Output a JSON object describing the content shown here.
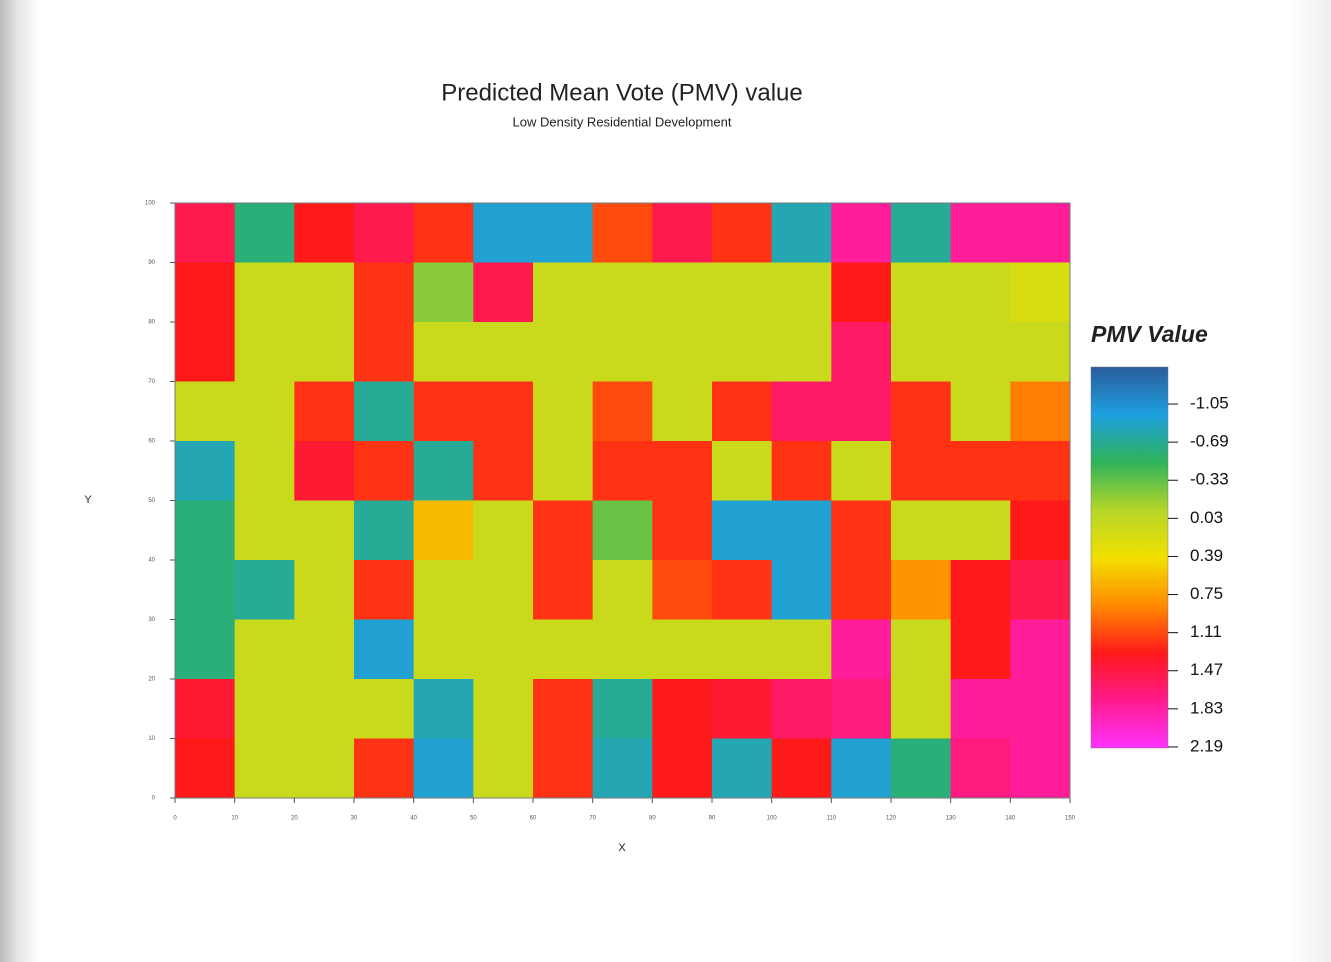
{
  "chart_data": {
    "type": "heatmap",
    "title": "Predicted Mean Vote (PMV) value",
    "subtitle": "Low Density Residential Development",
    "x_label": "X",
    "y_label": "Y",
    "colorbar_title": "PMV Value",
    "x": [
      5,
      15,
      25,
      35,
      45,
      55,
      65,
      75,
      85,
      95,
      105,
      115,
      125,
      135,
      145
    ],
    "y": [
      95,
      85,
      75,
      65,
      55,
      45,
      35,
      25,
      15,
      5
    ],
    "z": [
      [
        1.5,
        -0.6,
        1.3,
        1.5,
        1.2,
        -0.9,
        -0.9,
        1.1,
        1.5,
        1.2,
        -0.8,
        1.8,
        -0.7,
        1.8,
        1.8
      ],
      [
        1.3,
        0.1,
        0.1,
        1.2,
        -0.2,
        1.5,
        0.1,
        0.1,
        0.1,
        0.1,
        0.1,
        1.3,
        0.1,
        0.1,
        0.2
      ],
      [
        1.3,
        0.1,
        0.1,
        1.2,
        0.1,
        0.1,
        0.1,
        0.1,
        0.1,
        0.1,
        0.1,
        1.6,
        0.1,
        0.1,
        0.1
      ],
      [
        0.1,
        0.1,
        1.2,
        -0.7,
        1.2,
        1.2,
        0.1,
        1.1,
        0.1,
        1.2,
        1.6,
        1.6,
        1.2,
        0.1,
        0.9
      ],
      [
        -0.8,
        0.1,
        1.4,
        1.2,
        -0.7,
        1.2,
        0.1,
        1.2,
        1.2,
        0.1,
        1.2,
        0.1,
        1.2,
        1.2,
        1.2
      ],
      [
        -0.6,
        0.1,
        0.1,
        -0.7,
        0.6,
        0.1,
        1.2,
        -0.3,
        1.2,
        -0.9,
        -0.9,
        1.2,
        0.1,
        0.1,
        1.3
      ],
      [
        -0.6,
        -0.7,
        0.1,
        1.2,
        0.1,
        0.1,
        1.2,
        0.1,
        1.1,
        1.2,
        -0.9,
        1.2,
        0.8,
        1.3,
        1.5
      ],
      [
        -0.6,
        0.1,
        0.1,
        -0.9,
        0.1,
        0.1,
        0.1,
        0.1,
        0.1,
        0.1,
        0.1,
        1.8,
        0.1,
        1.3,
        1.8
      ],
      [
        1.4,
        0.1,
        0.1,
        0.1,
        -0.8,
        0.1,
        1.2,
        -0.7,
        1.3,
        1.4,
        1.6,
        1.7,
        0.1,
        1.8,
        1.8
      ],
      [
        1.3,
        0.1,
        0.1,
        1.2,
        -0.9,
        0.1,
        1.2,
        -0.8,
        1.3,
        -0.8,
        1.3,
        -0.9,
        -0.6,
        1.7,
        1.8
      ]
    ],
    "xlim": [
      0,
      150
    ],
    "ylim": [
      0,
      100
    ],
    "xticks": [
      0,
      10,
      20,
      30,
      40,
      50,
      60,
      70,
      80,
      90,
      100,
      110,
      120,
      130,
      140,
      150
    ],
    "yticks": [
      0,
      10,
      20,
      30,
      40,
      50,
      60,
      70,
      80,
      90,
      100
    ],
    "zlim": [
      -1.4,
      2.2
    ],
    "zticks": [
      -1.05,
      -0.69,
      -0.33,
      0.03,
      0.39,
      0.75,
      1.11,
      1.47,
      1.83,
      2.19
    ],
    "colorscale": [
      "#2a5d9c",
      "#1e9fe0",
      "#2fb35a",
      "#b5d62a",
      "#f2e000",
      "#ff8a00",
      "#ff1a1a",
      "#ff1a8c",
      "#ff33ff"
    ]
  }
}
